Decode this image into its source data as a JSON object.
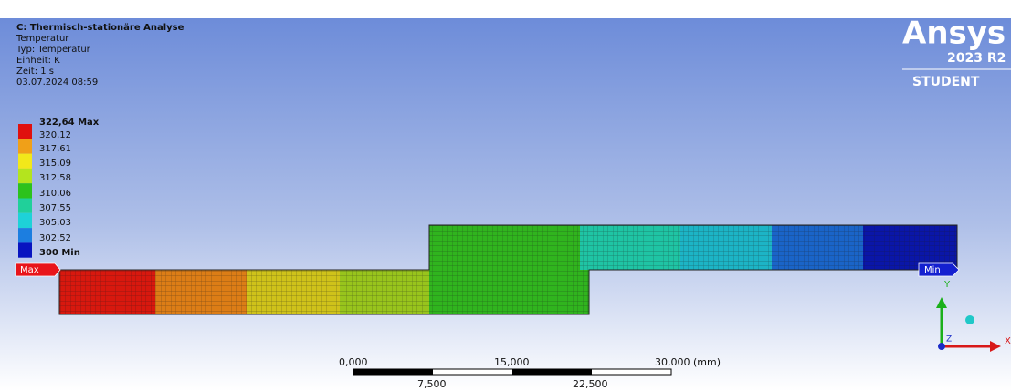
{
  "header": {
    "lines": [
      "C: Thermisch-stationäre Analyse",
      "Temperatur",
      "Typ: Temperatur",
      "Einheit: K",
      "Zeit: 1 s",
      "03.07.2024 08:59"
    ]
  },
  "legend": {
    "labels": [
      "322,64 Max",
      "320,12",
      "317,61",
      "315,09",
      "312,58",
      "310,06",
      "307,55",
      "305,03",
      "302,52",
      "300 Min"
    ]
  },
  "logo": {
    "name": "Ansys",
    "version": "2023 R2",
    "edition": "STUDENT"
  },
  "probes": {
    "max": "Max",
    "min": "Min"
  },
  "scale_bar": {
    "top_labels": [
      "0,000",
      "15,000",
      "30,000 (mm)"
    ],
    "bottom_labels": [
      "7,500",
      "22,500"
    ]
  },
  "triad": {
    "y": "Y",
    "z": "Z",
    "x": "X"
  }
}
